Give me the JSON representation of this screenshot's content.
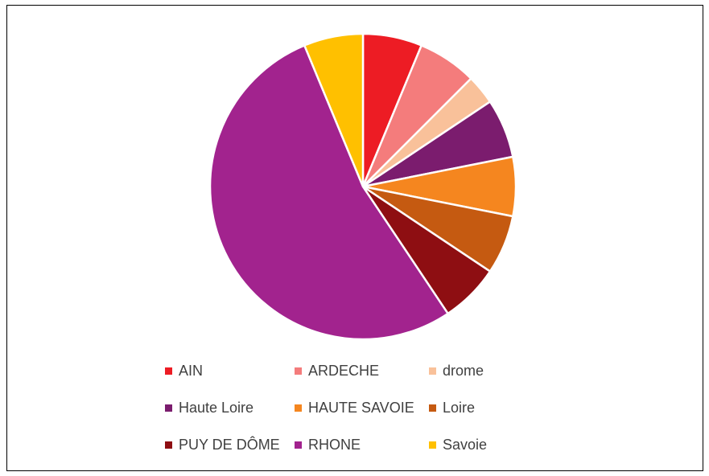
{
  "chart_data": {
    "type": "pie",
    "title": "",
    "series": [
      {
        "labels": [
          "AIN",
          "ARDECHE",
          "drome",
          "Haute Loire",
          "HAUTE SAVOIE",
          "Loire",
          "PUY DE DÔME",
          "RHONE",
          "Savoie"
        ],
        "values": [
          1,
          1,
          0.5,
          1,
          1,
          1,
          1,
          8.5,
          1
        ],
        "colors": [
          "#ED1C24",
          "#F47C7C",
          "#F9C19A",
          "#7B1C6E",
          "#F5861F",
          "#C55A11",
          "#8E0E12",
          "#A2238E",
          "#FFC000"
        ]
      }
    ],
    "start_angle_deg": 0,
    "direction": "clockwise",
    "slice_border_color": "#ffffff",
    "legend": {
      "position": "bottom",
      "columns": 3
    }
  }
}
